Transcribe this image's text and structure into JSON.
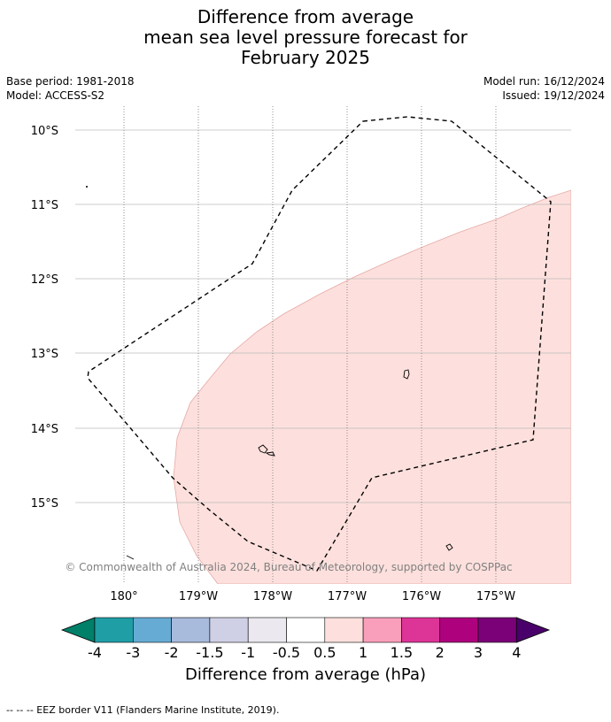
{
  "title_lines": [
    "Difference from average",
    "mean sea level pressure forecast for",
    "February 2025"
  ],
  "meta": {
    "base_period": "Base period: 1981-2018",
    "model": "Model: ACCESS-S2",
    "model_run": "Model run: 16/12/2024",
    "issued": "Issued: 19/12/2024"
  },
  "map": {
    "lat_labels": [
      "10°S",
      "11°S",
      "12°S",
      "13°S",
      "14°S",
      "15°S"
    ],
    "lon_labels": [
      "180°",
      "179°W",
      "178°W",
      "177°W",
      "176°W",
      "175°W"
    ],
    "lat_values": [
      -10,
      -11,
      -12,
      -13,
      -14,
      -15
    ],
    "lon_values": [
      180,
      -179,
      -178,
      -177,
      -176,
      -175
    ],
    "attribution": "© Commonwealth of Australia 2024, Bureau of Meteorology, supported by COSPPac",
    "anomaly_region_color": "#fde0dd"
  },
  "colorbar": {
    "label": "Difference from average (hPa)",
    "tick_labels": [
      "-4",
      "-3",
      "-2",
      "-1.5",
      "-1",
      "-0.5",
      "0.5",
      "1",
      "1.5",
      "2",
      "3",
      "4"
    ],
    "colors": [
      "#007f69",
      "#1f9ea6",
      "#66abd4",
      "#a8bbdc",
      "#cfd0e6",
      "#ebe9ef",
      "#ffffff",
      "#fde0dd",
      "#f99fbb",
      "#dd3497",
      "#ae017e",
      "#7a0177",
      "#4a006a"
    ]
  },
  "footnote": "--  --  -- EEZ border V11 (Flanders Marine Institute, 2019)."
}
